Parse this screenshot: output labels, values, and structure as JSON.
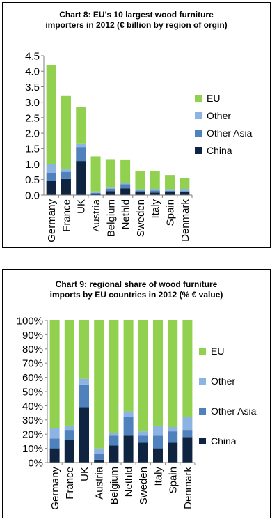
{
  "charts": [
    {
      "title_lines": [
        "Chart 8: EU's 10 largest wood furniture",
        "importers in 2012 (€ billion by region of orgin)"
      ]
    },
    {
      "title_lines": [
        "Chart 9: regional share of wood furniture",
        "imports by EU countries in 2012 (% € value)"
      ]
    }
  ],
  "colors": {
    "EU": "#92d050",
    "Other": "#8db3e2",
    "Other Asia": "#4f81bd",
    "China": "#0f2440"
  },
  "chart_data": [
    {
      "type": "bar",
      "stacked": true,
      "title": "Chart 8: EU's 10 largest wood furniture importers in 2012 (€ billion by region of orgin)",
      "categories": [
        "Germany",
        "France",
        "UK",
        "Austria",
        "Belgium",
        "Nethld",
        "Sweden",
        "Italy",
        "Spain",
        "Denmark"
      ],
      "series": [
        {
          "name": "China",
          "values": [
            0.45,
            0.52,
            1.1,
            0.03,
            0.13,
            0.22,
            0.1,
            0.08,
            0.09,
            0.1
          ]
        },
        {
          "name": "Other Asia",
          "values": [
            0.27,
            0.23,
            0.45,
            0.04,
            0.08,
            0.13,
            0.05,
            0.07,
            0.05,
            0.03
          ]
        },
        {
          "name": "Other",
          "values": [
            0.28,
            0.08,
            0.12,
            0.05,
            0.03,
            0.04,
            0.02,
            0.05,
            0.03,
            0.05
          ]
        },
        {
          "name": "EU",
          "values": [
            3.2,
            2.37,
            1.18,
            1.13,
            0.92,
            0.76,
            0.6,
            0.57,
            0.48,
            0.38
          ]
        }
      ],
      "ylim": [
        0,
        4.5
      ],
      "yticks": [
        "0.0",
        "0.5",
        "1.0",
        "1.5",
        "2.0",
        "2.5",
        "3.0",
        "3.5",
        "4.0",
        "4.5"
      ],
      "legend": [
        "EU",
        "Other",
        "Other Asia",
        "China"
      ],
      "legend_position": "right",
      "grid": false
    },
    {
      "type": "bar",
      "stacked": true,
      "title": "Chart 9: regional share of wood furniture imports by EU countries in 2012 (% € value)",
      "categories": [
        "Germany",
        "France",
        "UK",
        "Austria",
        "Belgium",
        "Nethld",
        "Sweden",
        "Italy",
        "Spain",
        "Denmark"
      ],
      "series": [
        {
          "name": "China",
          "values": [
            10,
            16,
            39,
            2,
            12,
            19,
            14,
            10,
            14,
            18
          ]
        },
        {
          "name": "Other Asia",
          "values": [
            7,
            7,
            16,
            4,
            7,
            13,
            5,
            9,
            8,
            5
          ]
        },
        {
          "name": "Other",
          "values": [
            7,
            3,
            4,
            4,
            2,
            4,
            3,
            7,
            3,
            9
          ]
        },
        {
          "name": "EU",
          "values": [
            76,
            74,
            41,
            90,
            79,
            64,
            78,
            74,
            75,
            68
          ]
        }
      ],
      "ylim": [
        0,
        100
      ],
      "yticks": [
        "0%",
        "10%",
        "20%",
        "30%",
        "40%",
        "50%",
        "60%",
        "70%",
        "80%",
        "90%",
        "100%"
      ],
      "legend": [
        "EU",
        "Other",
        "Other Asia",
        "China"
      ],
      "legend_position": "right",
      "grid": false
    }
  ]
}
